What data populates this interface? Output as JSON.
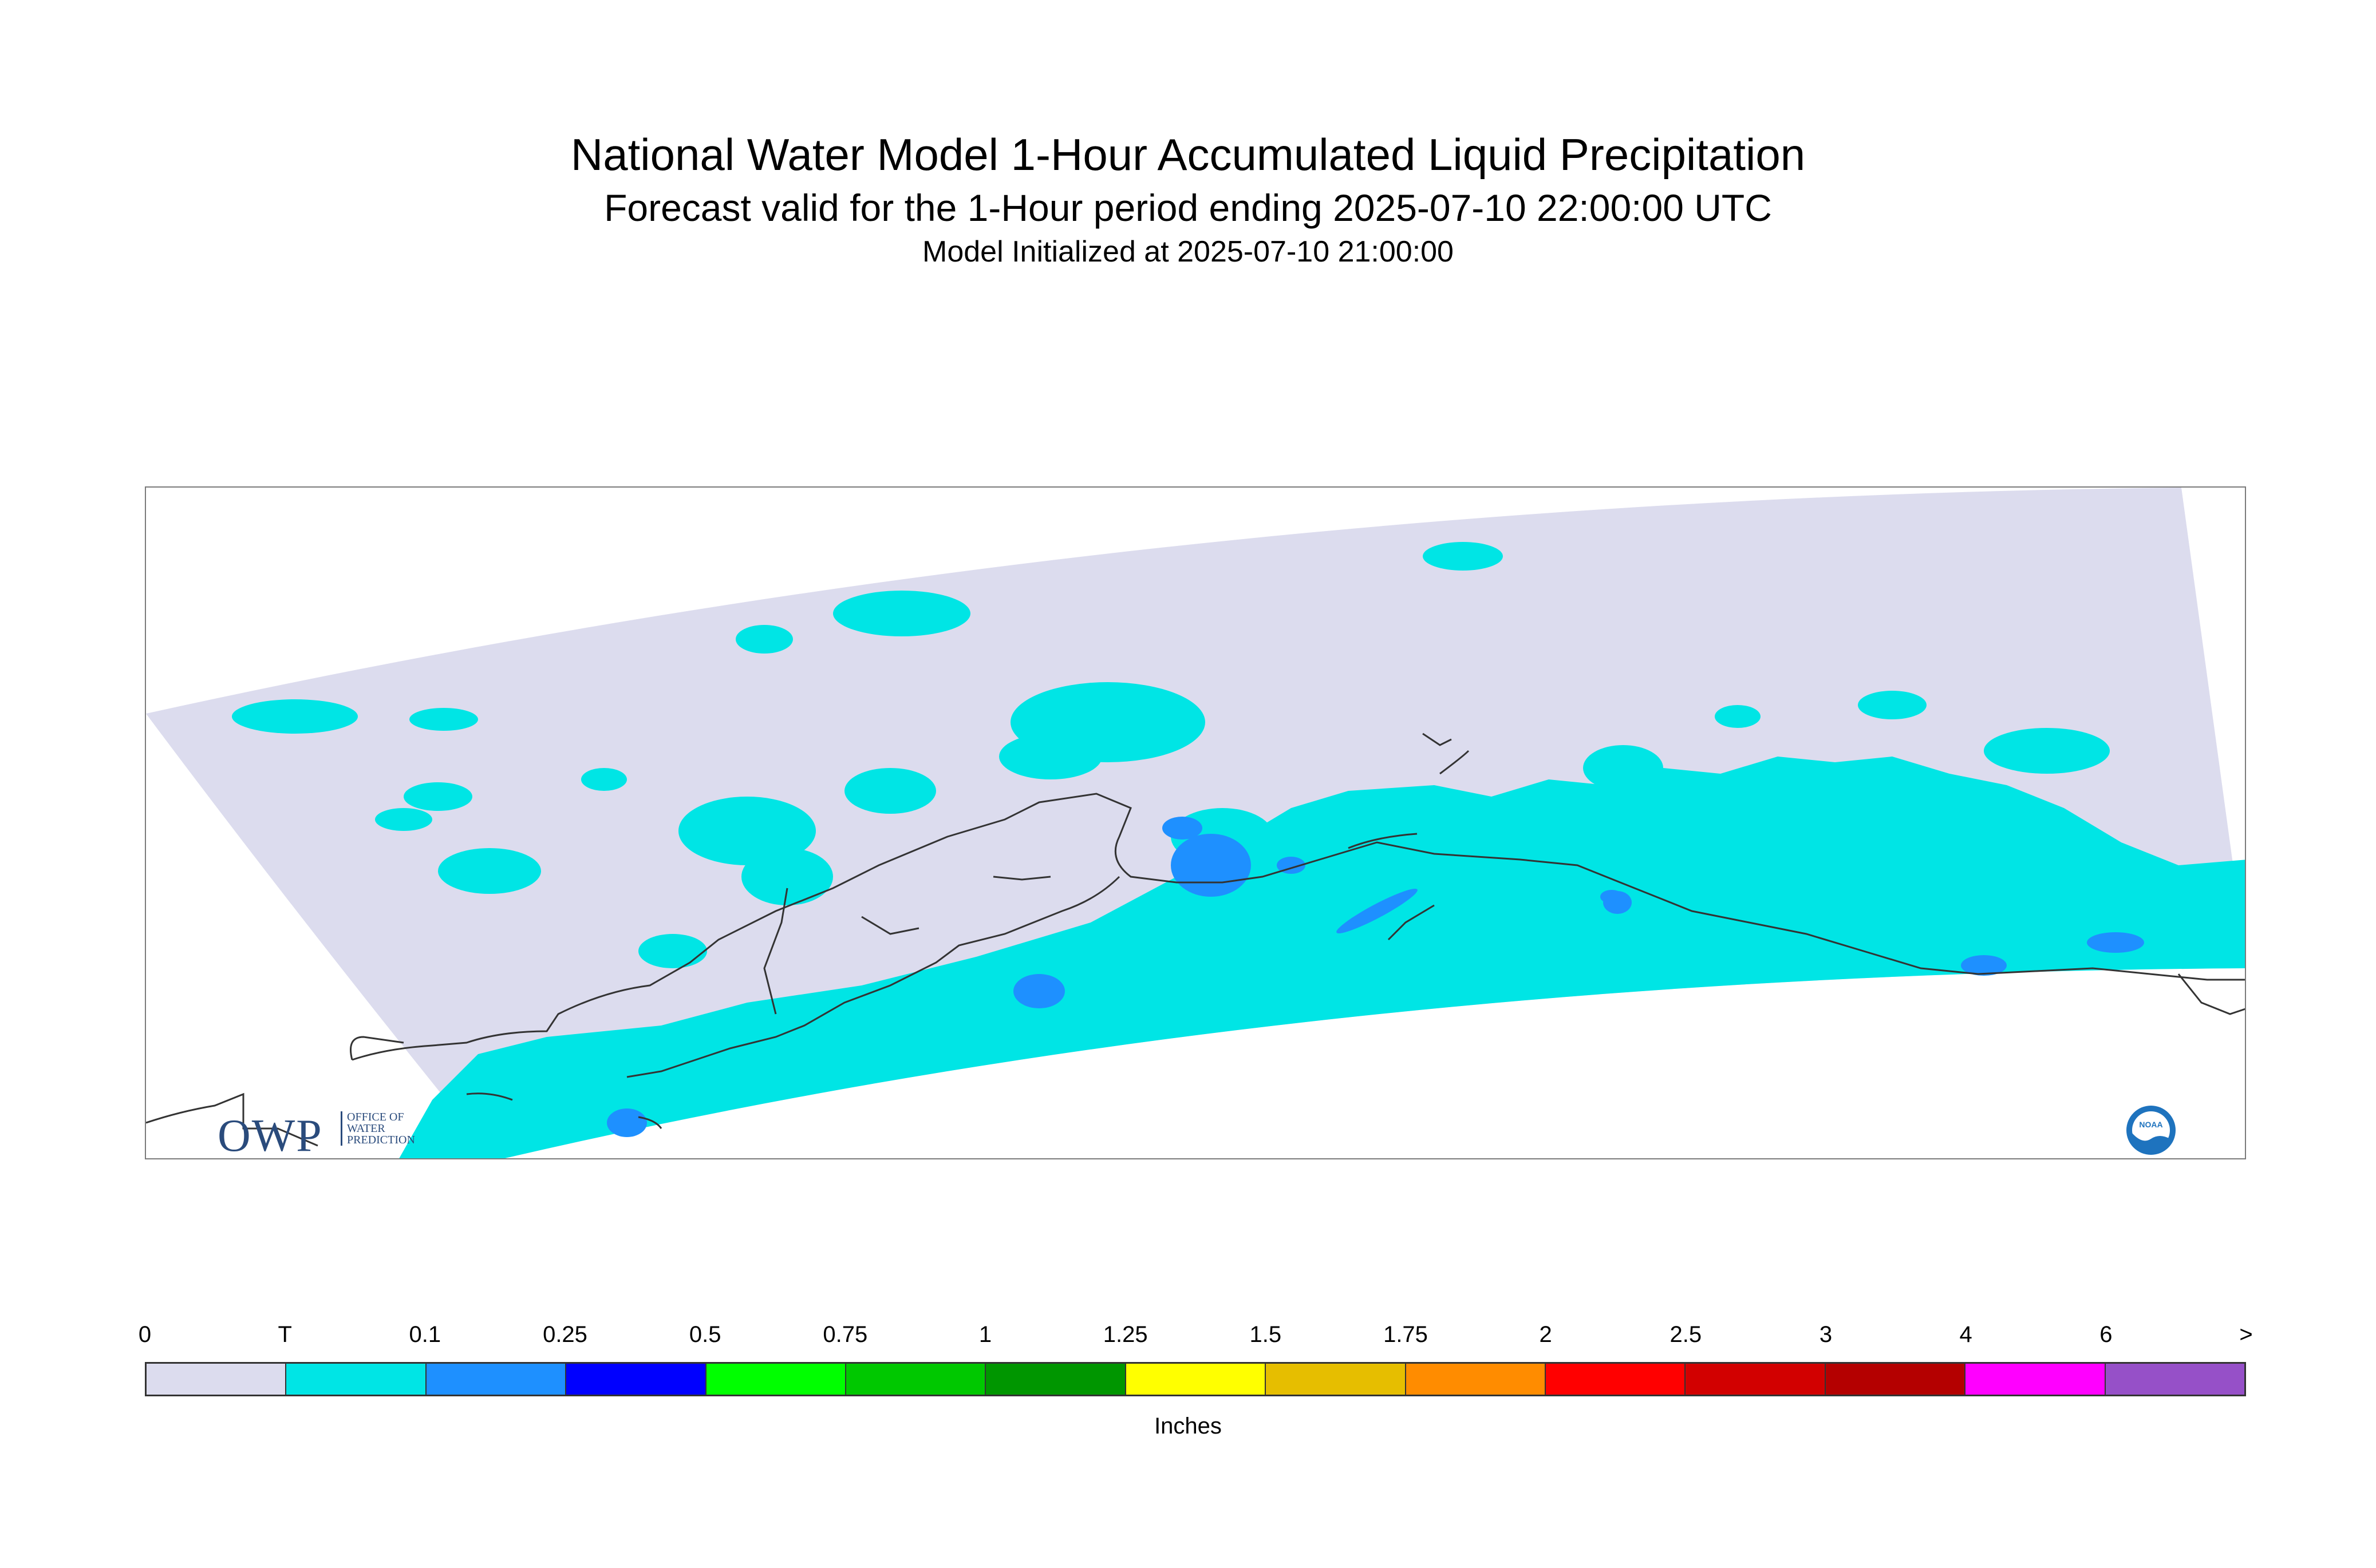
{
  "title": "National Water Model 1-Hour Accumulated Liquid Precipitation",
  "subtitle": "Forecast valid for the 1-Hour period ending 2025-07-10 22:00:00 UTC",
  "init_line": "Model Initialized at 2025-07-10 21:00:00",
  "map": {
    "region": "Alaska",
    "projection": "curved model domain (Lambert-style)",
    "outside_domain_color": "#ffffff",
    "zero_color": "#dcdcee",
    "trace_color": "#00e5e5",
    "light_color": "#1e90ff",
    "coastline_color": "#333333"
  },
  "logos": {
    "owp_letters": "OWP",
    "owp_sub": [
      "OFFICE OF",
      "WATER",
      "PREDICTION"
    ],
    "noaa_text": "NOAA"
  },
  "legend": {
    "units": "Inches",
    "labels": [
      "0",
      "T",
      "0.1",
      "0.25",
      "0.5",
      "0.75",
      "1",
      "1.25",
      "1.5",
      "1.75",
      "2",
      "2.5",
      "3",
      "4",
      "6",
      ">"
    ],
    "colors": [
      "#dcdcee",
      "#00e5e5",
      "#1e90ff",
      "#0000ff",
      "#00ff00",
      "#00c800",
      "#009600",
      "#ffff00",
      "#e6be00",
      "#ff8c00",
      "#ff0000",
      "#d20000",
      "#b40000",
      "#ff00ff",
      "#9650c8"
    ]
  }
}
